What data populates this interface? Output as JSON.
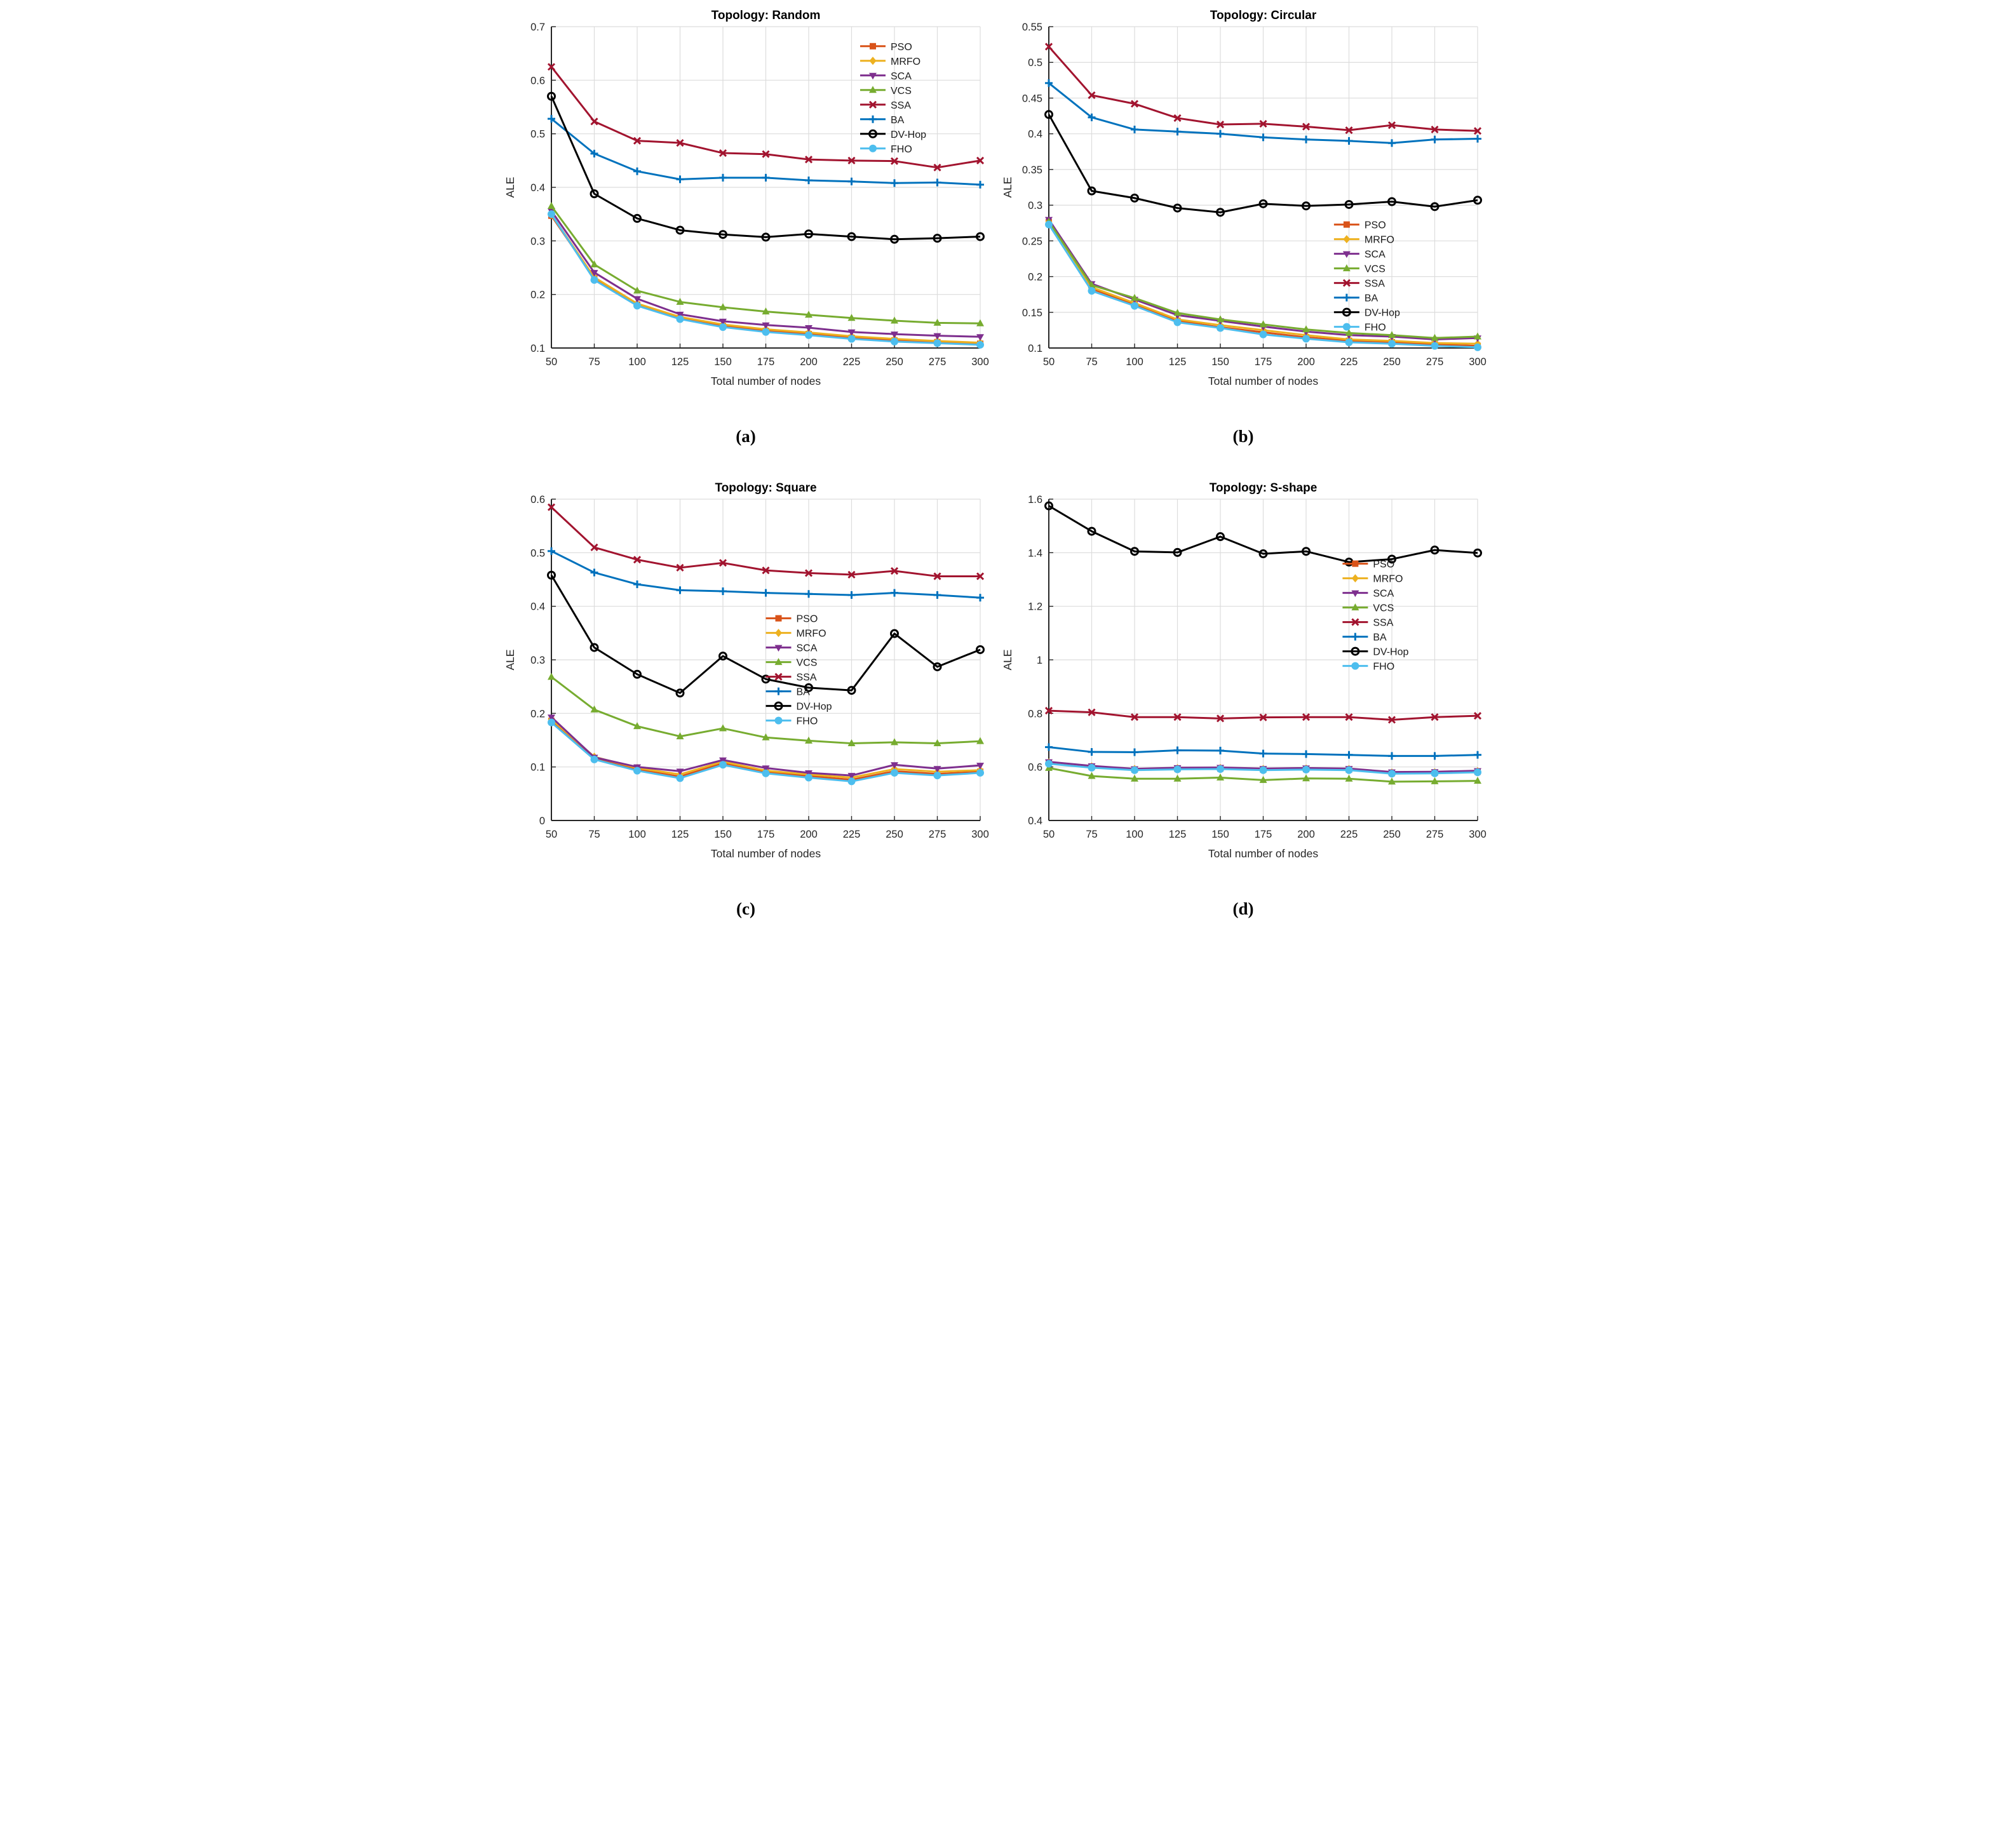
{
  "figure": {
    "background": "#ffffff",
    "text_color": "#262626",
    "grid_color": "#dcdcdc",
    "series": [
      {
        "id": "PSO",
        "label": "PSO",
        "color": "#D95319",
        "marker": "square"
      },
      {
        "id": "MRFO",
        "label": "MRFO",
        "color": "#EDB120",
        "marker": "diamond"
      },
      {
        "id": "SCA",
        "label": "SCA",
        "color": "#7E2F8E",
        "marker": "triangle-down"
      },
      {
        "id": "VCS",
        "label": "VCS",
        "color": "#77AC30",
        "marker": "triangle-up"
      },
      {
        "id": "SSA",
        "label": "SSA",
        "color": "#A2142F",
        "marker": "x"
      },
      {
        "id": "BA",
        "label": "BA",
        "color": "#0072BD",
        "marker": "plus"
      },
      {
        "id": "DV-Hop",
        "label": "DV-Hop",
        "color": "#000000",
        "marker": "circle-open"
      },
      {
        "id": "FHO",
        "label": "FHO",
        "color": "#4DBEEE",
        "marker": "circle-filled"
      }
    ]
  },
  "chart_data": [
    {
      "type": "line",
      "caption": "(a)",
      "title": "Topology: Random",
      "xlabel": "Total number of nodes",
      "ylabel": "ALE",
      "x": [
        50,
        75,
        100,
        125,
        150,
        175,
        200,
        225,
        250,
        275,
        300
      ],
      "ylim": [
        0.1,
        0.7
      ],
      "yticks": [
        0.1,
        0.2,
        0.3,
        0.4,
        0.5,
        0.6,
        0.7
      ],
      "grid": true,
      "legend_position": {
        "fx": 0.72,
        "fy": 0.045
      },
      "series": [
        {
          "name": "PSO",
          "values": [
            0.347,
            0.23,
            0.181,
            0.156,
            0.141,
            0.132,
            0.126,
            0.119,
            0.114,
            0.111,
            0.108
          ]
        },
        {
          "name": "MRFO",
          "values": [
            0.349,
            0.232,
            0.183,
            0.158,
            0.144,
            0.135,
            0.129,
            0.122,
            0.117,
            0.113,
            0.11
          ]
        },
        {
          "name": "SCA",
          "values": [
            0.356,
            0.241,
            0.192,
            0.163,
            0.15,
            0.143,
            0.138,
            0.13,
            0.126,
            0.123,
            0.121
          ]
        },
        {
          "name": "VCS",
          "values": [
            0.365,
            0.256,
            0.207,
            0.186,
            0.176,
            0.168,
            0.162,
            0.156,
            0.151,
            0.147,
            0.146
          ]
        },
        {
          "name": "SSA",
          "values": [
            0.625,
            0.523,
            0.487,
            0.483,
            0.464,
            0.462,
            0.452,
            0.45,
            0.449,
            0.437,
            0.45
          ]
        },
        {
          "name": "BA",
          "values": [
            0.528,
            0.463,
            0.43,
            0.415,
            0.418,
            0.418,
            0.413,
            0.411,
            0.408,
            0.409,
            0.405
          ]
        },
        {
          "name": "DV-Hop",
          "values": [
            0.57,
            0.388,
            0.342,
            0.32,
            0.312,
            0.307,
            0.313,
            0.308,
            0.303,
            0.305,
            0.308
          ]
        },
        {
          "name": "FHO",
          "values": [
            0.35,
            0.227,
            0.179,
            0.154,
            0.139,
            0.13,
            0.124,
            0.117,
            0.112,
            0.109,
            0.106
          ]
        }
      ]
    },
    {
      "type": "line",
      "caption": "(b)",
      "title": "Topology: Circular",
      "xlabel": "Total number of nodes",
      "ylabel": "ALE",
      "x": [
        50,
        75,
        100,
        125,
        150,
        175,
        200,
        225,
        250,
        275,
        300
      ],
      "ylim": [
        0.1,
        0.55
      ],
      "yticks": [
        0.1,
        0.15,
        0.2,
        0.25,
        0.3,
        0.35,
        0.4,
        0.45,
        0.5,
        0.55
      ],
      "grid": true,
      "legend_position": {
        "fx": 0.665,
        "fy": 0.6
      },
      "series": [
        {
          "name": "PSO",
          "values": [
            0.276,
            0.183,
            0.161,
            0.138,
            0.129,
            0.122,
            0.115,
            0.11,
            0.108,
            0.105,
            0.103
          ]
        },
        {
          "name": "MRFO",
          "values": [
            0.277,
            0.185,
            0.163,
            0.14,
            0.132,
            0.125,
            0.118,
            0.112,
            0.11,
            0.107,
            0.106
          ]
        },
        {
          "name": "SCA",
          "values": [
            0.28,
            0.19,
            0.168,
            0.146,
            0.138,
            0.13,
            0.123,
            0.118,
            0.116,
            0.112,
            0.114
          ]
        },
        {
          "name": "VCS",
          "values": [
            0.277,
            0.188,
            0.17,
            0.149,
            0.14,
            0.133,
            0.126,
            0.121,
            0.118,
            0.114,
            0.116
          ]
        },
        {
          "name": "SSA",
          "values": [
            0.522,
            0.454,
            0.442,
            0.422,
            0.413,
            0.414,
            0.41,
            0.405,
            0.412,
            0.406,
            0.404
          ]
        },
        {
          "name": "BA",
          "values": [
            0.471,
            0.423,
            0.406,
            0.403,
            0.4,
            0.395,
            0.392,
            0.39,
            0.387,
            0.392,
            0.393
          ]
        },
        {
          "name": "DV-Hop",
          "values": [
            0.427,
            0.32,
            0.31,
            0.296,
            0.29,
            0.302,
            0.299,
            0.301,
            0.305,
            0.298,
            0.307
          ]
        },
        {
          "name": "FHO",
          "values": [
            0.273,
            0.18,
            0.159,
            0.136,
            0.128,
            0.119,
            0.113,
            0.108,
            0.106,
            0.103,
            0.101
          ]
        }
      ]
    },
    {
      "type": "line",
      "caption": "(c)",
      "title": "Topology: Square",
      "xlabel": "Total number of nodes",
      "ylabel": "ALE",
      "x": [
        50,
        75,
        100,
        125,
        150,
        175,
        200,
        225,
        250,
        275,
        300
      ],
      "ylim": [
        0,
        0.6
      ],
      "yticks": [
        0,
        0.1,
        0.2,
        0.3,
        0.4,
        0.5,
        0.6
      ],
      "grid": true,
      "legend_position": {
        "fx": 0.5,
        "fy": 0.355
      },
      "series": [
        {
          "name": "PSO",
          "values": [
            0.186,
            0.116,
            0.095,
            0.082,
            0.107,
            0.09,
            0.083,
            0.076,
            0.092,
            0.087,
            0.091
          ]
        },
        {
          "name": "MRFO",
          "values": [
            0.189,
            0.119,
            0.098,
            0.086,
            0.11,
            0.093,
            0.086,
            0.08,
            0.096,
            0.091,
            0.094
          ]
        },
        {
          "name": "SCA",
          "values": [
            0.193,
            0.118,
            0.1,
            0.092,
            0.113,
            0.098,
            0.089,
            0.084,
            0.104,
            0.097,
            0.103
          ]
        },
        {
          "name": "VCS",
          "values": [
            0.268,
            0.207,
            0.176,
            0.157,
            0.172,
            0.155,
            0.149,
            0.144,
            0.146,
            0.144,
            0.148
          ]
        },
        {
          "name": "SSA",
          "values": [
            0.585,
            0.51,
            0.487,
            0.472,
            0.481,
            0.467,
            0.462,
            0.459,
            0.466,
            0.456,
            0.456
          ]
        },
        {
          "name": "BA",
          "values": [
            0.503,
            0.463,
            0.441,
            0.43,
            0.428,
            0.425,
            0.423,
            0.421,
            0.425,
            0.421,
            0.416
          ]
        },
        {
          "name": "DV-Hop",
          "values": [
            0.458,
            0.323,
            0.273,
            0.238,
            0.307,
            0.264,
            0.248,
            0.243,
            0.349,
            0.287,
            0.319
          ]
        },
        {
          "name": "FHO",
          "values": [
            0.183,
            0.114,
            0.093,
            0.079,
            0.104,
            0.088,
            0.08,
            0.073,
            0.089,
            0.084,
            0.089
          ]
        }
      ]
    },
    {
      "type": "line",
      "caption": "(d)",
      "title": "Topology: S-shape",
      "xlabel": "Total number of nodes",
      "ylabel": "ALE",
      "x": [
        50,
        75,
        100,
        125,
        150,
        175,
        200,
        225,
        250,
        275,
        300
      ],
      "ylim": [
        0.4,
        1.6
      ],
      "yticks": [
        0.4,
        0.6,
        0.8,
        1,
        1.2,
        1.4,
        1.6
      ],
      "grid": true,
      "legend_position": {
        "fx": 0.685,
        "fy": 0.185
      },
      "series": [
        {
          "name": "PSO",
          "values": [
            0.615,
            0.6,
            0.59,
            0.593,
            0.594,
            0.59,
            0.592,
            0.59,
            0.577,
            0.578,
            0.582
          ]
        },
        {
          "name": "MRFO",
          "values": [
            0.617,
            0.602,
            0.592,
            0.595,
            0.596,
            0.592,
            0.594,
            0.592,
            0.579,
            0.58,
            0.584
          ]
        },
        {
          "name": "SCA",
          "values": [
            0.619,
            0.604,
            0.593,
            0.597,
            0.598,
            0.594,
            0.596,
            0.594,
            0.581,
            0.582,
            0.586
          ]
        },
        {
          "name": "VCS",
          "values": [
            0.596,
            0.566,
            0.556,
            0.556,
            0.56,
            0.551,
            0.557,
            0.556,
            0.545,
            0.546,
            0.548
          ]
        },
        {
          "name": "SSA",
          "values": [
            0.81,
            0.804,
            0.786,
            0.786,
            0.781,
            0.785,
            0.786,
            0.786,
            0.776,
            0.786,
            0.791
          ]
        },
        {
          "name": "BA",
          "values": [
            0.674,
            0.656,
            0.655,
            0.662,
            0.661,
            0.65,
            0.648,
            0.645,
            0.641,
            0.641,
            0.645
          ]
        },
        {
          "name": "DV-Hop",
          "values": [
            1.575,
            1.48,
            1.405,
            1.401,
            1.46,
            1.396,
            1.405,
            1.365,
            1.376,
            1.41,
            1.399
          ]
        },
        {
          "name": "FHO",
          "values": [
            0.612,
            0.597,
            0.588,
            0.591,
            0.592,
            0.588,
            0.59,
            0.588,
            0.575,
            0.576,
            0.58
          ]
        }
      ]
    }
  ]
}
